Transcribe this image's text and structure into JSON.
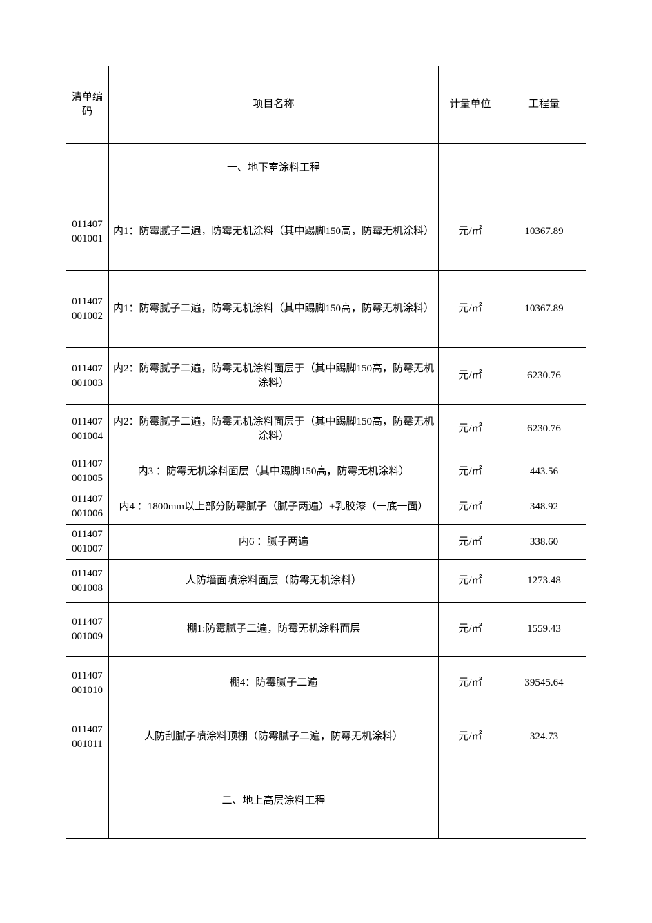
{
  "table": {
    "columns": {
      "code": "清单编码",
      "name": "项目名称",
      "unit": "计量单位",
      "qty": "工程量"
    },
    "section1": "一、地下室涂料工程",
    "section2": "二、地上高层涂料工程",
    "rows": [
      {
        "code": "011407001001",
        "name": "内1：防霉腻子二遍，防霉无机涂料（其中踢脚150高，防霉无机涂料）",
        "unit": "元/㎡",
        "qty": "10367.89"
      },
      {
        "code": "011407001002",
        "name": "内1：防霉腻子二遍，防霉无机涂料（其中踢脚150高，防霉无机涂料）",
        "unit": "元/㎡",
        "qty": "10367.89"
      },
      {
        "code": "011407001003",
        "name": "内2：防霉腻子二遍，防霉无机涂料面层于（其中踢脚150高，防霉无机涂料）",
        "unit": "元/㎡",
        "qty": "6230.76"
      },
      {
        "code": "011407001004",
        "name": "内2：防霉腻子二遍，防霉无机涂料面层于（其中踢脚150高，防霉无机涂料）",
        "unit": "元/㎡",
        "qty": "6230.76"
      },
      {
        "code": "011407001005",
        "name": "内3 ：防霉无机涂料面层（其中踢脚150高，防霉无机涂料）",
        "unit": "元/㎡",
        "qty": "443.56"
      },
      {
        "code": "011407001006",
        "name": "内4 ：1800mm以上部分防霉腻子（腻子两遍）+乳胶漆（一底一面）",
        "unit": "元/㎡",
        "qty": "348.92"
      },
      {
        "code": "011407001007",
        "name": "内6 ：腻子两遍",
        "unit": "元/㎡",
        "qty": "338.60"
      },
      {
        "code": "011407001008",
        "name": "人防墙面喷涂料面层（防霉无机涂料）",
        "unit": "元/㎡",
        "qty": "1273.48"
      },
      {
        "code": "011407001009",
        "name": "棚1:防霉腻子二遍，防霉无机涂料面层",
        "unit": "元/㎡",
        "qty": "1559.43"
      },
      {
        "code": "011407001010",
        "name": "棚4：防霉腻子二遍",
        "unit": "元/㎡",
        "qty": "39545.64"
      },
      {
        "code": "011407001011",
        "name": "人防刮腻子喷涂料顶棚（防霉腻子二遍，防霉无机涂料）",
        "unit": "元/㎡",
        "qty": "324.73"
      }
    ]
  }
}
